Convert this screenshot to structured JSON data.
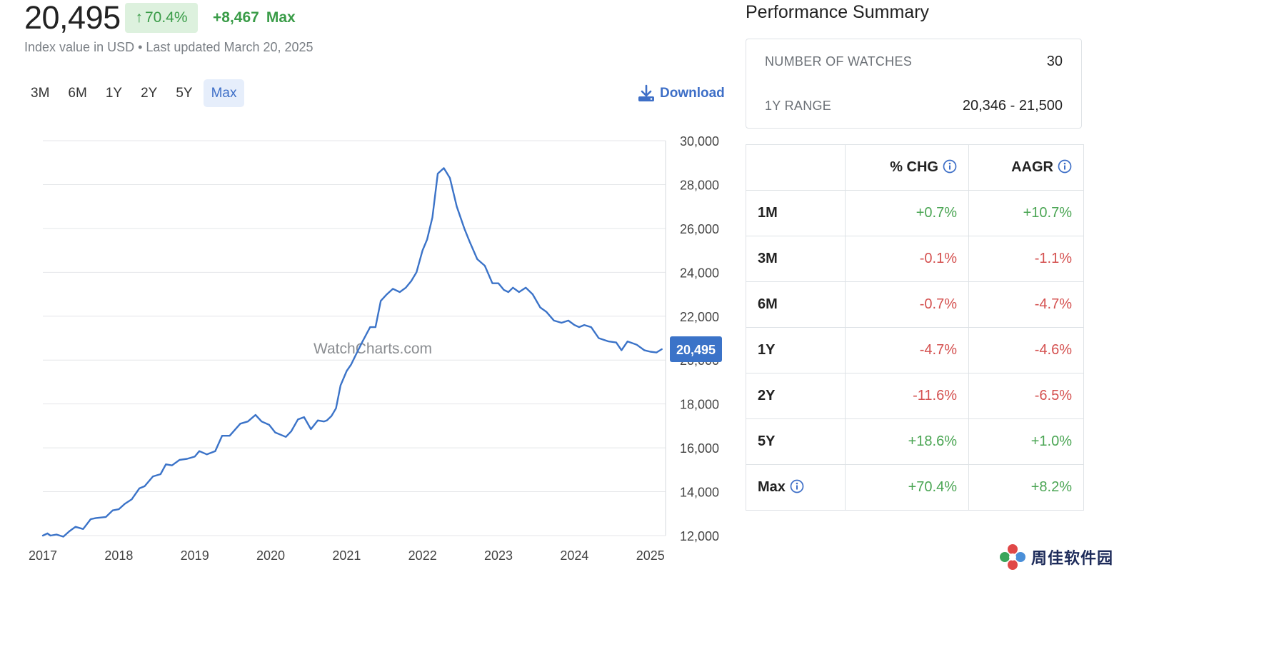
{
  "header": {
    "value": "20,495",
    "change_pct": "70.4%",
    "change_abs": "+8,467",
    "change_period": "Max",
    "subtitle": "Index value in USD • Last updated March 20, 2025"
  },
  "range_tabs": [
    "3M",
    "6M",
    "1Y",
    "2Y",
    "5Y",
    "Max"
  ],
  "active_tab": "Max",
  "download_label": "Download",
  "colors": {
    "line": "#3b73c8",
    "positive": "#4aa553",
    "negative": "#d4504f",
    "accent": "#3e6fc7"
  },
  "chart_data": {
    "type": "line",
    "watermark": "WatchCharts.com",
    "xlim": [
      2017.0,
      2025.2
    ],
    "ylim": [
      12000,
      30000
    ],
    "x_ticks": [
      2017,
      2018,
      2019,
      2020,
      2021,
      2022,
      2023,
      2024,
      2025
    ],
    "x_tick_labels": [
      "2017",
      "2018",
      "2019",
      "2020",
      "2021",
      "2022",
      "2023",
      "2024",
      "2025"
    ],
    "y_ticks": [
      12000,
      14000,
      16000,
      18000,
      20000,
      22000,
      24000,
      26000,
      28000,
      30000
    ],
    "y_tick_labels": [
      "12,000",
      "14,000",
      "16,000",
      "18,000",
      "20,000",
      "22,000",
      "24,000",
      "26,000",
      "28,000",
      "30,000"
    ],
    "last_value_label": "20,495",
    "grid": true,
    "series": [
      {
        "x": [
          2017.0,
          2017.06,
          2017.1,
          2017.18,
          2017.27,
          2017.35,
          2017.43,
          2017.53,
          2017.63,
          2017.7,
          2017.83,
          2017.92,
          2018.0,
          2018.08,
          2018.17,
          2018.27,
          2018.34,
          2018.45,
          2018.55,
          2018.62,
          2018.7,
          2018.8,
          2018.9,
          2019.0,
          2019.06,
          2019.16,
          2019.27,
          2019.36,
          2019.46,
          2019.6,
          2019.7,
          2019.8,
          2019.88,
          2019.98,
          2020.06,
          2020.13,
          2020.2,
          2020.27,
          2020.36,
          2020.44,
          2020.53,
          2020.62,
          2020.7,
          2020.74,
          2020.8,
          2020.86,
          2020.92,
          2021.0,
          2021.06,
          2021.13,
          2021.21,
          2021.31,
          2021.38,
          2021.45,
          2021.53,
          2021.61,
          2021.7,
          2021.78,
          2021.85,
          2021.92,
          2022.0,
          2022.06,
          2022.13,
          2022.2,
          2022.28,
          2022.36,
          2022.45,
          2022.55,
          2022.62,
          2022.72,
          2022.82,
          2022.92,
          2023.0,
          2023.07,
          2023.13,
          2023.19,
          2023.27,
          2023.36,
          2023.45,
          2023.55,
          2023.63,
          2023.73,
          2023.83,
          2023.92,
          2024.0,
          2024.06,
          2024.13,
          2024.22,
          2024.32,
          2024.45,
          2024.55,
          2024.62,
          2024.7,
          2024.82,
          2024.92,
          2025.0,
          2025.08,
          2025.15
        ],
        "y": [
          12000,
          12100,
          12000,
          12050,
          11950,
          12200,
          12400,
          12300,
          12750,
          12800,
          12850,
          13150,
          13200,
          13450,
          13650,
          14150,
          14250,
          14700,
          14800,
          15250,
          15200,
          15450,
          15500,
          15600,
          15850,
          15700,
          15850,
          16550,
          16550,
          17100,
          17200,
          17500,
          17200,
          17050,
          16700,
          16600,
          16500,
          16750,
          17300,
          17400,
          16850,
          17250,
          17200,
          17250,
          17450,
          17800,
          18850,
          19500,
          19800,
          20300,
          20850,
          21500,
          21500,
          22700,
          23000,
          23250,
          23100,
          23300,
          23600,
          24000,
          25000,
          25500,
          26500,
          28500,
          28750,
          28300,
          27000,
          26000,
          25400,
          24600,
          24300,
          23500,
          23500,
          23200,
          23100,
          23300,
          23100,
          23300,
          23000,
          22400,
          22200,
          21800,
          21700,
          21800,
          21600,
          21500,
          21600,
          21500,
          21000,
          20850,
          20800,
          20450,
          20850,
          20700,
          20450,
          20380,
          20346,
          20495
        ]
      }
    ]
  },
  "performance_summary": {
    "title": "Performance Summary",
    "rows": [
      {
        "label": "NUMBER OF WATCHES",
        "value": "30"
      },
      {
        "label": "1Y RANGE",
        "value": "20,346 - 21,500"
      }
    ],
    "table": {
      "headers": [
        "% CHG",
        "AAGR"
      ],
      "rows": [
        {
          "period": "1M",
          "chg": "+0.7%",
          "aagr": "+10.7%"
        },
        {
          "period": "3M",
          "chg": "-0.1%",
          "aagr": "-1.1%"
        },
        {
          "period": "6M",
          "chg": "-0.7%",
          "aagr": "-4.7%"
        },
        {
          "period": "1Y",
          "chg": "-4.7%",
          "aagr": "-4.6%"
        },
        {
          "period": "2Y",
          "chg": "-11.6%",
          "aagr": "-6.5%"
        },
        {
          "period": "5Y",
          "chg": "+18.6%",
          "aagr": "+1.0%"
        },
        {
          "period": "Max",
          "chg": "+70.4%",
          "aagr": "+8.2%"
        }
      ]
    }
  },
  "site_logo_text": "周佳软件园"
}
